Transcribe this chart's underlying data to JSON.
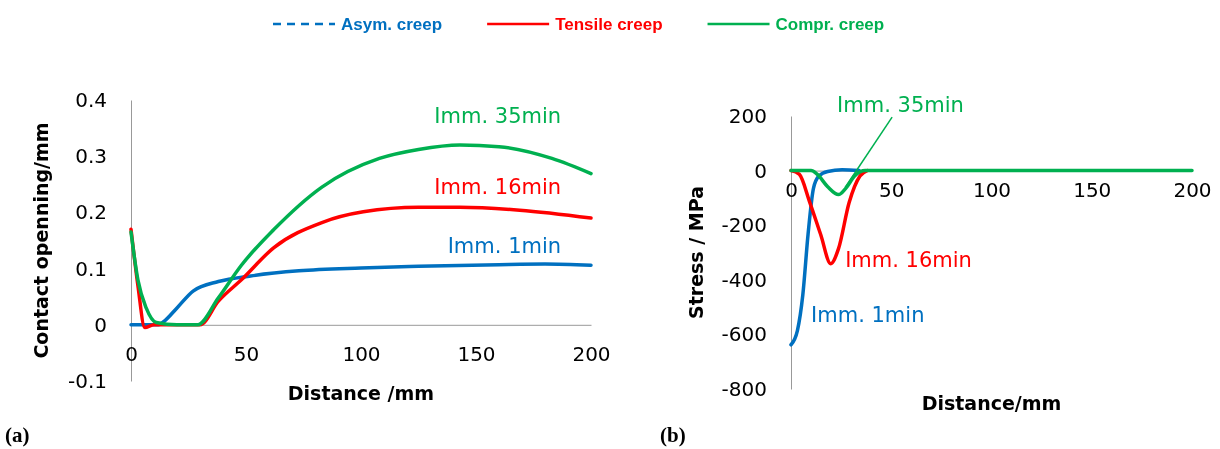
{
  "chart_data": [
    {
      "type": "line",
      "xlabel": "Distance /mm",
      "ylabel": "Contact openning/mm",
      "xlim": [
        0,
        200
      ],
      "ylim": [
        -0.1,
        0.4
      ],
      "xticks": [
        0,
        50,
        100,
        150,
        200
      ],
      "yticks": [
        -0.1,
        0,
        0.1,
        0.2,
        0.3,
        0.4
      ],
      "grid": false,
      "annotations": [
        "Asym. creep",
        "Tensile creep",
        "Compr. creep",
        "(a)"
      ],
      "series": [
        {
          "name": "Imm. 1min",
          "color": "#0070c0",
          "x": [
            0,
            12,
            14,
            20,
            27,
            38,
            52,
            73,
            100,
            125,
            160,
            180,
            200
          ],
          "values": [
            0,
            0,
            0.005,
            0.03,
            0.06,
            0.077,
            0.087,
            0.096,
            0.101,
            0.104,
            0.107,
            0.108,
            0.106
          ]
        },
        {
          "name": "Imm. 16min",
          "color": "#ff0000",
          "x": [
            0,
            3,
            6,
            10,
            20,
            30,
            38,
            48,
            62,
            83,
            101,
            125,
            143,
            169,
            200
          ],
          "values": [
            0.17,
            0.07,
            -0.005,
            0,
            0,
            0,
            0.042,
            0.08,
            0.137,
            0.182,
            0.201,
            0.209,
            0.209,
            0.204,
            0.19
          ]
        },
        {
          "name": "Imm. 35min",
          "color": "#00b050",
          "x": [
            0,
            3,
            6.6,
            11,
            20,
            29,
            38,
            48,
            62,
            83,
            108,
            125,
            143,
            160,
            183,
            200
          ],
          "values": [
            0.165,
            0.08,
            0.03,
            0.004,
            0,
            0,
            0.048,
            0.106,
            0.169,
            0.245,
            0.296,
            0.312,
            0.32,
            0.317,
            0.296,
            0.269
          ]
        }
      ]
    },
    {
      "type": "line",
      "xlabel": "Distance/mm",
      "ylabel": "Stress / MPa",
      "xlim": [
        0,
        200
      ],
      "ylim": [
        -800,
        200
      ],
      "xticks": [
        0,
        50,
        100,
        150,
        200
      ],
      "yticks": [
        -800,
        -600,
        -400,
        -200,
        0,
        200
      ],
      "grid": false,
      "annotations": [
        "(b)"
      ],
      "series": [
        {
          "name": "Imm. 1min",
          "color": "#0070c0",
          "x": [
            0,
            3.2,
            5.9,
            8.5,
            11.2,
            13.9,
            18.3,
            25.5,
            34
          ],
          "values": [
            -638,
            -586,
            -455,
            -234,
            -65,
            -20,
            -3,
            3,
            0
          ]
        },
        {
          "name": "Imm. 16min",
          "color": "#ff0000",
          "x": [
            0,
            4.1,
            9.4,
            14.8,
            19.8,
            23.7,
            29,
            34.4,
            38
          ],
          "values": [
            0,
            -13,
            -117,
            -234,
            -341,
            -286,
            -117,
            -20,
            0
          ]
        },
        {
          "name": "Imm. 35min",
          "color": "#00b050",
          "x": [
            0,
            10,
            13,
            18.3,
            23.7,
            27.3,
            31.7,
            37,
            60,
            100,
            150,
            200
          ],
          "values": [
            0,
            0,
            -13,
            -59,
            -88,
            -65,
            -20,
            0,
            0,
            0,
            0,
            0
          ]
        }
      ]
    }
  ]
}
